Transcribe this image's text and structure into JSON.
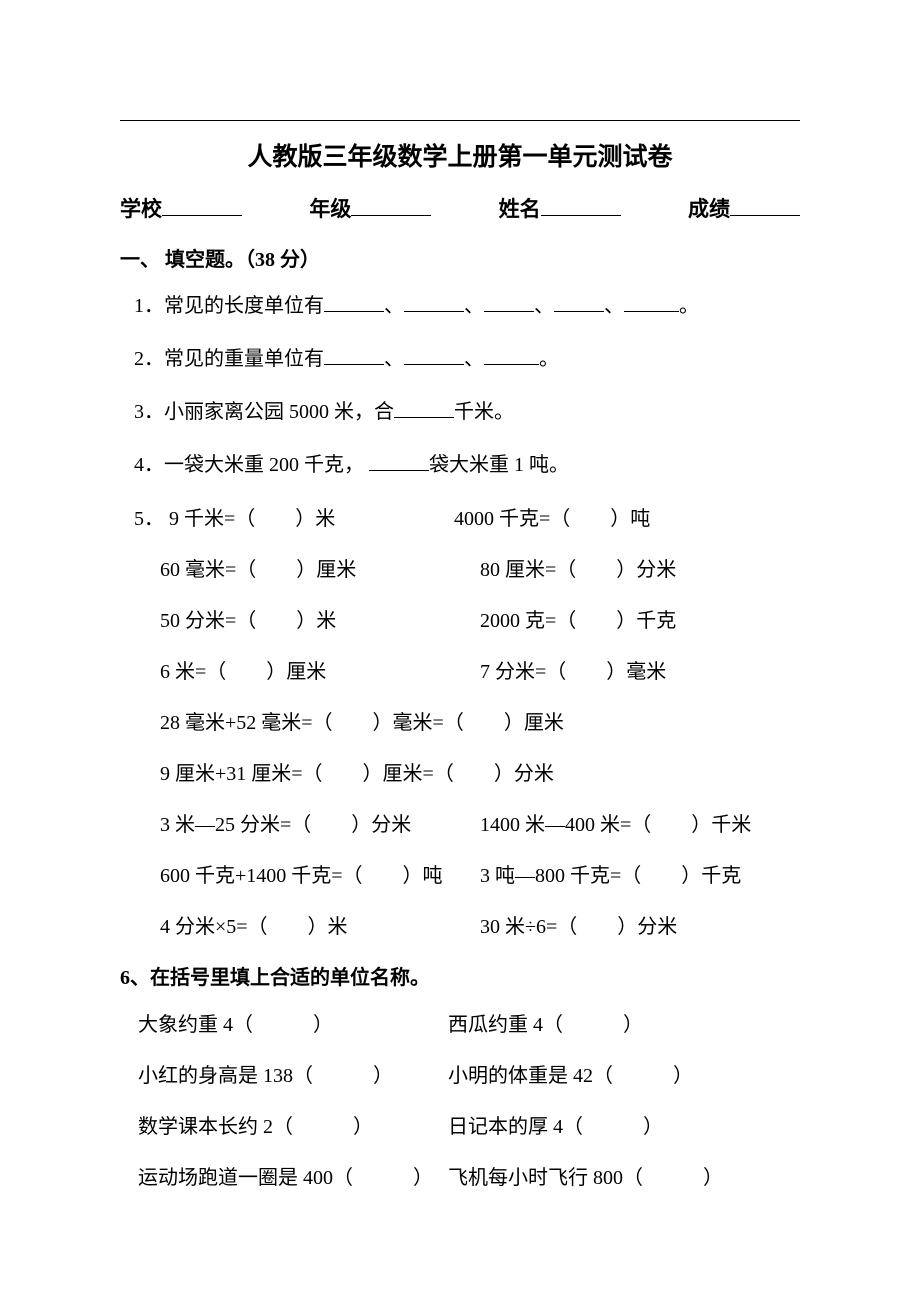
{
  "title": "人教版三年级数学上册第一单元测试卷",
  "info": {
    "school_label": "学校",
    "grade_label": "年级",
    "name_label": "姓名",
    "score_label": "成绩"
  },
  "section1": {
    "header": "一、 填空题。（38 分）",
    "q1": "1．常见的长度单位有",
    "q1_suffix": "。",
    "q2": "2．常见的重量单位有",
    "q2_suffix": "。",
    "q3_pre": "3．小丽家离公园 5000 米，合",
    "q3_post": "千米。",
    "q4_pre": "4．一袋大米重 200 千克，",
    "q4_post": "袋大米重 1 吨。",
    "q5_label": "5． ",
    "q5_rows": [
      {
        "left": "9 千米=（　　）米",
        "right": "4000 千克=（　　）吨",
        "first": true
      },
      {
        "left": "60 毫米=（　　）厘米",
        "right": "80 厘米=（　　）分米"
      },
      {
        "left": "50 分米=（　　）米",
        "right": "2000 克=（　　）千克"
      },
      {
        "left": "6 米=（　　）厘米",
        "right": "7 分米=（　　）毫米"
      }
    ],
    "q5_full_rows": [
      "28 毫米+52 毫米=（　　）毫米=（　　）厘米",
      "9 厘米+31 厘米=（　　）厘米=（　　）分米"
    ],
    "q5_rows2": [
      {
        "left": "3 米―25 分米=（　　）分米",
        "right": "1400 米―400 米=（　　）千米"
      },
      {
        "left": "600 千克+1400 千克=（　　）吨",
        "right": "3 吨―800 千克=（　　）千克"
      },
      {
        "left": "4 分米×5=（　　）米",
        "right": "30 米÷6=（　　）分米"
      }
    ],
    "q6_header": "6、在括号里填上合适的单位名称。",
    "q6_rows": [
      {
        "left": "大象约重 4（　　　）",
        "right": "西瓜约重 4（　　　）"
      },
      {
        "left": "小红的身高是 138（　　　）",
        "right": "小明的体重是 42（　　　）"
      },
      {
        "left": "数学课本长约 2（　　　）",
        "right": "日记本的厚 4（　　　）"
      },
      {
        "left": "运动场跑道一圈是 400（　　　）",
        "right": "飞机每小时飞行 800（　　　）"
      }
    ]
  }
}
